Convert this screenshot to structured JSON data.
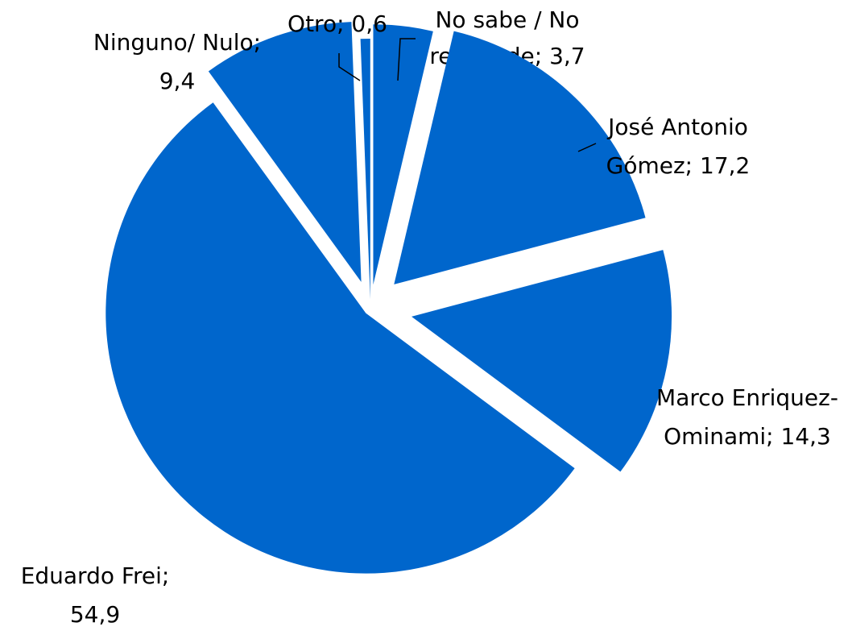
{
  "chart_data": {
    "type": "pie",
    "title": "",
    "slices": [
      {
        "label_lines": [
          "No sabe / No",
          "responde; 3,7"
        ],
        "value": 3.7
      },
      {
        "label_lines": [
          "José Antonio",
          "Gómez; 17,2"
        ],
        "value": 17.2
      },
      {
        "label_lines": [
          "Marco Enriquez-",
          "Ominami; 14,3"
        ],
        "value": 14.3
      },
      {
        "label_lines": [
          "Eduardo Frei;",
          "54,9"
        ],
        "value": 54.9
      },
      {
        "label_lines": [
          "Ninguno/ Nulo;",
          "9,4"
        ],
        "value": 9.4
      },
      {
        "label_lines": [
          "Otro; 0,6"
        ],
        "value": 0.6
      }
    ],
    "colors": {
      "slice": "#0066CC",
      "leader": "#000000"
    },
    "exploded": true,
    "legend": "none"
  }
}
